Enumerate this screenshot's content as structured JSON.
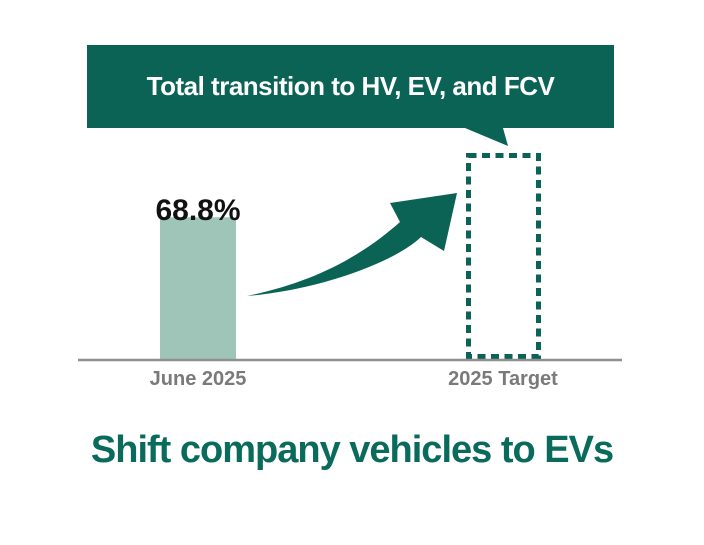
{
  "theme": {
    "accent": "#0B6356",
    "title_color": "#0A6B5C",
    "bar_fill": "#9FC4B8",
    "axis_gray": "#8F8F8F",
    "label_gray": "#7A7A7A",
    "text_dark": "#111111",
    "banner_text": "#FFFFFF",
    "background": "#FFFFFF"
  },
  "callout": {
    "label": "Total transition to HV, EV, and FCV"
  },
  "chart_data": {
    "type": "bar",
    "title": "",
    "xlabel": "",
    "ylabel": "",
    "unit": "%",
    "ylim": [
      0,
      100
    ],
    "grid": false,
    "legend": "none",
    "categories": [
      "June 2025",
      "2025 Target"
    ],
    "series": [
      {
        "name": "Total transition to HV, EV, and FCV",
        "values": [
          68.8,
          100
        ]
      }
    ],
    "value_labels": [
      "68.8%",
      ""
    ],
    "annotations": [
      "target bar drawn as dashed outline",
      "curved growth arrow from current bar to target bar",
      "callout bubble points at target bar"
    ]
  },
  "footer": {
    "title": "Shift company vehicles to EVs"
  }
}
